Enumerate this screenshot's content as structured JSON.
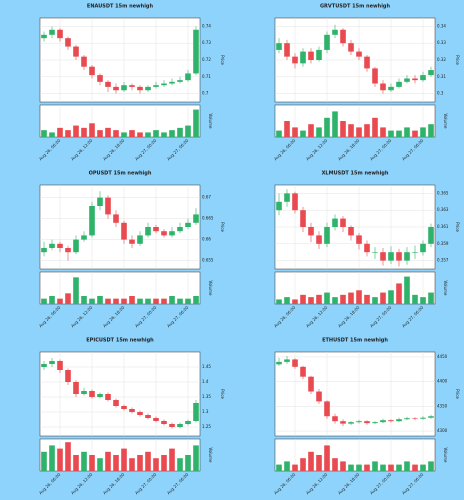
{
  "chart_data": [
    {
      "type": "candlestick",
      "title": "ENAUSDT 15m newhigh",
      "ylabel": "Price",
      "volume_label": "Volume",
      "up_color": "#2fb26a",
      "down_color": "#e84a50",
      "grid": true,
      "open": [
        0.733,
        0.735,
        0.738,
        0.733,
        0.728,
        0.722,
        0.716,
        0.711,
        0.707,
        0.704,
        0.702,
        0.705,
        0.704,
        0.702,
        0.704,
        0.705,
        0.706,
        0.707,
        0.708,
        0.712
      ],
      "high": [
        0.737,
        0.74,
        0.739,
        0.734,
        0.729,
        0.723,
        0.717,
        0.712,
        0.708,
        0.706,
        0.707,
        0.706,
        0.705,
        0.705,
        0.707,
        0.708,
        0.709,
        0.71,
        0.714,
        0.74
      ],
      "low": [
        0.731,
        0.733,
        0.731,
        0.726,
        0.72,
        0.714,
        0.709,
        0.705,
        0.701,
        0.7,
        0.701,
        0.702,
        0.7,
        0.701,
        0.703,
        0.704,
        0.705,
        0.706,
        0.707,
        0.711
      ],
      "close": [
        0.735,
        0.738,
        0.733,
        0.728,
        0.722,
        0.716,
        0.711,
        0.707,
        0.704,
        0.702,
        0.705,
        0.704,
        0.702,
        0.704,
        0.705,
        0.706,
        0.707,
        0.708,
        0.712,
        0.738
      ],
      "volume": [
        3,
        2,
        4,
        3,
        5,
        4,
        6,
        3,
        4,
        3,
        2,
        3,
        2,
        2,
        3,
        2,
        3,
        4,
        5,
        12
      ],
      "volume_lim": [
        0,
        14
      ],
      "ylim": [
        0.695,
        0.745
      ],
      "yticks": [
        0.7,
        0.71,
        0.72,
        0.73,
        0.74
      ],
      "xticks": [
        {
          "value": 2,
          "label": "Aug 26, 06:00"
        },
        {
          "value": 6,
          "label": "Aug 26, 12:00"
        },
        {
          "value": 10,
          "label": "Aug 26, 18:00"
        },
        {
          "value": 14,
          "label": "Aug 27, 00:00"
        },
        {
          "value": 18,
          "label": "Aug 27, 06:00"
        }
      ]
    },
    {
      "type": "candlestick",
      "title": "GRVTUSDT 15m newhigh",
      "ylabel": "Price",
      "volume_label": "Volume",
      "up_color": "#2fb26a",
      "down_color": "#e84a50",
      "grid": true,
      "open": [
        0.326,
        0.33,
        0.322,
        0.318,
        0.325,
        0.32,
        0.326,
        0.335,
        0.338,
        0.33,
        0.325,
        0.322,
        0.315,
        0.306,
        0.302,
        0.304,
        0.307,
        0.309,
        0.308,
        0.311
      ],
      "high": [
        0.333,
        0.332,
        0.324,
        0.327,
        0.327,
        0.328,
        0.337,
        0.341,
        0.339,
        0.332,
        0.327,
        0.323,
        0.316,
        0.308,
        0.306,
        0.309,
        0.311,
        0.311,
        0.313,
        0.316
      ],
      "low": [
        0.324,
        0.32,
        0.315,
        0.316,
        0.318,
        0.319,
        0.324,
        0.333,
        0.328,
        0.323,
        0.32,
        0.313,
        0.304,
        0.3,
        0.301,
        0.303,
        0.306,
        0.306,
        0.307,
        0.31
      ],
      "close": [
        0.33,
        0.322,
        0.318,
        0.325,
        0.32,
        0.326,
        0.335,
        0.338,
        0.33,
        0.325,
        0.322,
        0.315,
        0.306,
        0.302,
        0.304,
        0.307,
        0.309,
        0.308,
        0.311,
        0.314
      ],
      "volume": [
        2,
        5,
        3,
        2,
        4,
        3,
        6,
        8,
        5,
        4,
        3,
        4,
        6,
        3,
        2,
        2,
        3,
        2,
        3,
        4
      ],
      "volume_lim": [
        0,
        10
      ],
      "ylim": [
        0.295,
        0.345
      ],
      "yticks": [
        0.3,
        0.31,
        0.32,
        0.33,
        0.34
      ],
      "xticks": [
        {
          "value": 2,
          "label": "Aug 26, 06:00"
        },
        {
          "value": 6,
          "label": "Aug 26, 12:00"
        },
        {
          "value": 10,
          "label": "Aug 26, 18:00"
        },
        {
          "value": 14,
          "label": "Aug 27, 00:00"
        },
        {
          "value": 18,
          "label": "Aug 27, 06:00"
        }
      ]
    },
    {
      "type": "candlestick",
      "title": "OPUSDT 15m newhigh",
      "ylabel": "Price",
      "volume_label": "Volume",
      "up_color": "#2fb26a",
      "down_color": "#e84a50",
      "grid": true,
      "open": [
        0.657,
        0.658,
        0.659,
        0.658,
        0.657,
        0.66,
        0.661,
        0.668,
        0.67,
        0.666,
        0.664,
        0.66,
        0.659,
        0.661,
        0.663,
        0.662,
        0.661,
        0.662,
        0.663,
        0.664
      ],
      "high": [
        0.6595,
        0.66,
        0.6595,
        0.6585,
        0.661,
        0.662,
        0.669,
        0.6715,
        0.6705,
        0.667,
        0.6645,
        0.661,
        0.662,
        0.664,
        0.6635,
        0.6625,
        0.663,
        0.664,
        0.665,
        0.6675
      ],
      "low": [
        0.656,
        0.6575,
        0.657,
        0.655,
        0.6565,
        0.6595,
        0.6605,
        0.667,
        0.665,
        0.663,
        0.659,
        0.658,
        0.6585,
        0.6605,
        0.6615,
        0.6605,
        0.6605,
        0.6615,
        0.6625,
        0.6635
      ],
      "close": [
        0.658,
        0.659,
        0.658,
        0.657,
        0.66,
        0.661,
        0.668,
        0.67,
        0.666,
        0.664,
        0.66,
        0.659,
        0.661,
        0.663,
        0.662,
        0.661,
        0.662,
        0.663,
        0.664,
        0.666
      ],
      "volume": [
        2,
        3,
        2,
        4,
        10,
        3,
        2,
        3,
        2,
        2,
        2,
        3,
        2,
        2,
        2,
        2,
        3,
        2,
        2,
        3
      ],
      "volume_lim": [
        0,
        12
      ],
      "ylim": [
        0.653,
        0.673
      ],
      "yticks": [
        0.655,
        0.66,
        0.665,
        0.67
      ],
      "xticks": [
        {
          "value": 2,
          "label": "Aug 26, 06:00"
        },
        {
          "value": 6,
          "label": "Aug 26, 12:00"
        },
        {
          "value": 10,
          "label": "Aug 26, 18:00"
        },
        {
          "value": 14,
          "label": "Aug 27, 00:00"
        },
        {
          "value": 18,
          "label": "Aug 27, 06:00"
        }
      ]
    },
    {
      "type": "candlestick",
      "title": "XLMUSDT 15m newhigh",
      "ylabel": "Price",
      "volume_label": "Volume",
      "up_color": "#2fb26a",
      "down_color": "#e84a50",
      "grid": true,
      "open": [
        0.363,
        0.364,
        0.365,
        0.363,
        0.361,
        0.36,
        0.359,
        0.361,
        0.362,
        0.361,
        0.36,
        0.359,
        0.358,
        0.358,
        0.357,
        0.358,
        0.357,
        0.358,
        0.358,
        0.359
      ],
      "high": [
        0.365,
        0.3655,
        0.3652,
        0.3634,
        0.3615,
        0.3605,
        0.3615,
        0.3625,
        0.3623,
        0.3612,
        0.3603,
        0.3594,
        0.3586,
        0.3585,
        0.3587,
        0.3584,
        0.3586,
        0.3588,
        0.3594,
        0.3614
      ],
      "low": [
        0.3624,
        0.3634,
        0.3626,
        0.3604,
        0.3592,
        0.3584,
        0.3586,
        0.3606,
        0.3604,
        0.3594,
        0.3583,
        0.3575,
        0.3572,
        0.3564,
        0.3566,
        0.3563,
        0.3565,
        0.3572,
        0.3576,
        0.3586
      ],
      "close": [
        0.364,
        0.365,
        0.363,
        0.361,
        0.36,
        0.359,
        0.361,
        0.362,
        0.361,
        0.36,
        0.359,
        0.358,
        0.358,
        0.357,
        0.358,
        0.357,
        0.358,
        0.358,
        0.359,
        0.361
      ],
      "volume": [
        2,
        3,
        2,
        4,
        3,
        4,
        5,
        3,
        4,
        5,
        6,
        4,
        3,
        5,
        6,
        9,
        12,
        4,
        3,
        5
      ],
      "volume_lim": [
        0,
        14
      ],
      "ylim": [
        0.356,
        0.366
      ],
      "yticks": [
        0.357,
        0.359,
        0.361,
        0.363,
        0.365
      ],
      "xticks": [
        {
          "value": 2,
          "label": "Aug 26, 06:00"
        },
        {
          "value": 6,
          "label": "Aug 26, 12:00"
        },
        {
          "value": 10,
          "label": "Aug 26, 18:00"
        },
        {
          "value": 14,
          "label": "Aug 27, 00:00"
        },
        {
          "value": 18,
          "label": "Aug 27, 06:00"
        }
      ]
    },
    {
      "type": "candlestick",
      "title": "EPICUSDT 15m newhigh",
      "ylabel": "Price",
      "volume_label": "Volume",
      "up_color": "#2fb26a",
      "down_color": "#e84a50",
      "grid": true,
      "open": [
        1.45,
        1.46,
        1.47,
        1.44,
        1.4,
        1.36,
        1.37,
        1.35,
        1.36,
        1.34,
        1.32,
        1.31,
        1.3,
        1.29,
        1.28,
        1.27,
        1.26,
        1.25,
        1.26,
        1.27
      ],
      "high": [
        1.47,
        1.48,
        1.475,
        1.445,
        1.405,
        1.38,
        1.375,
        1.365,
        1.365,
        1.345,
        1.325,
        1.315,
        1.305,
        1.295,
        1.285,
        1.275,
        1.265,
        1.265,
        1.275,
        1.34
      ],
      "low": [
        1.44,
        1.45,
        1.43,
        1.39,
        1.35,
        1.355,
        1.345,
        1.345,
        1.335,
        1.315,
        1.305,
        1.295,
        1.285,
        1.275,
        1.265,
        1.255,
        1.245,
        1.245,
        1.255,
        1.265
      ],
      "close": [
        1.46,
        1.47,
        1.44,
        1.4,
        1.36,
        1.37,
        1.35,
        1.36,
        1.34,
        1.32,
        1.31,
        1.3,
        1.29,
        1.28,
        1.27,
        1.26,
        1.25,
        1.26,
        1.27,
        1.33
      ],
      "volume": [
        6,
        8,
        7,
        9,
        5,
        6,
        5,
        4,
        6,
        5,
        7,
        4,
        5,
        6,
        4,
        5,
        7,
        4,
        5,
        8
      ],
      "volume_lim": [
        0,
        10
      ],
      "ylim": [
        1.22,
        1.5
      ],
      "yticks": [
        1.25,
        1.3,
        1.35,
        1.4,
        1.45
      ],
      "xticks": [
        {
          "value": 2,
          "label": "Aug 26, 06:00"
        },
        {
          "value": 6,
          "label": "Aug 26, 12:00"
        },
        {
          "value": 10,
          "label": "Aug 26, 18:00"
        },
        {
          "value": 14,
          "label": "Aug 27, 00:00"
        },
        {
          "value": 18,
          "label": "Aug 27, 06:00"
        }
      ]
    },
    {
      "type": "candlestick",
      "title": "ETHUSDT 15m newhigh",
      "ylabel": "Price",
      "volume_label": "Volume",
      "up_color": "#2fb26a",
      "down_color": "#e84a50",
      "grid": true,
      "open": [
        4435,
        4440,
        4445,
        4430,
        4410,
        4380,
        4360,
        4330,
        4320,
        4315,
        4318,
        4320,
        4316,
        4318,
        4322,
        4320,
        4324,
        4326,
        4325,
        4327
      ],
      "high": [
        4448,
        4452,
        4447,
        4432,
        4412,
        4385,
        4362,
        4335,
        4324,
        4320,
        4323,
        4322,
        4320,
        4325,
        4324,
        4327,
        4329,
        4328,
        4330,
        4333
      ],
      "low": [
        4432,
        4436,
        4426,
        4405,
        4375,
        4355,
        4325,
        4315,
        4310,
        4312,
        4315,
        4313,
        4314,
        4316,
        4317,
        4318,
        4322,
        4322,
        4323,
        4325
      ],
      "close": [
        4440,
        4445,
        4430,
        4410,
        4380,
        4360,
        4330,
        4320,
        4315,
        4318,
        4320,
        4316,
        4318,
        4322,
        4320,
        4324,
        4326,
        4325,
        4327,
        4330
      ],
      "volume": [
        2,
        3,
        2,
        4,
        6,
        5,
        8,
        4,
        3,
        2,
        2,
        2,
        3,
        2,
        2,
        2,
        3,
        2,
        2,
        3
      ],
      "volume_lim": [
        0,
        10
      ],
      "ylim": [
        4290,
        4460
      ],
      "yticks": [
        4300,
        4350,
        4400,
        4450
      ],
      "xticks": [
        {
          "value": 2,
          "label": "Aug 26, 06:00"
        },
        {
          "value": 6,
          "label": "Aug 26, 12:00"
        },
        {
          "value": 10,
          "label": "Aug 26, 18:00"
        },
        {
          "value": 14,
          "label": "Aug 27, 00:00"
        },
        {
          "value": 18,
          "label": "Aug 27, 06:00"
        }
      ]
    }
  ]
}
